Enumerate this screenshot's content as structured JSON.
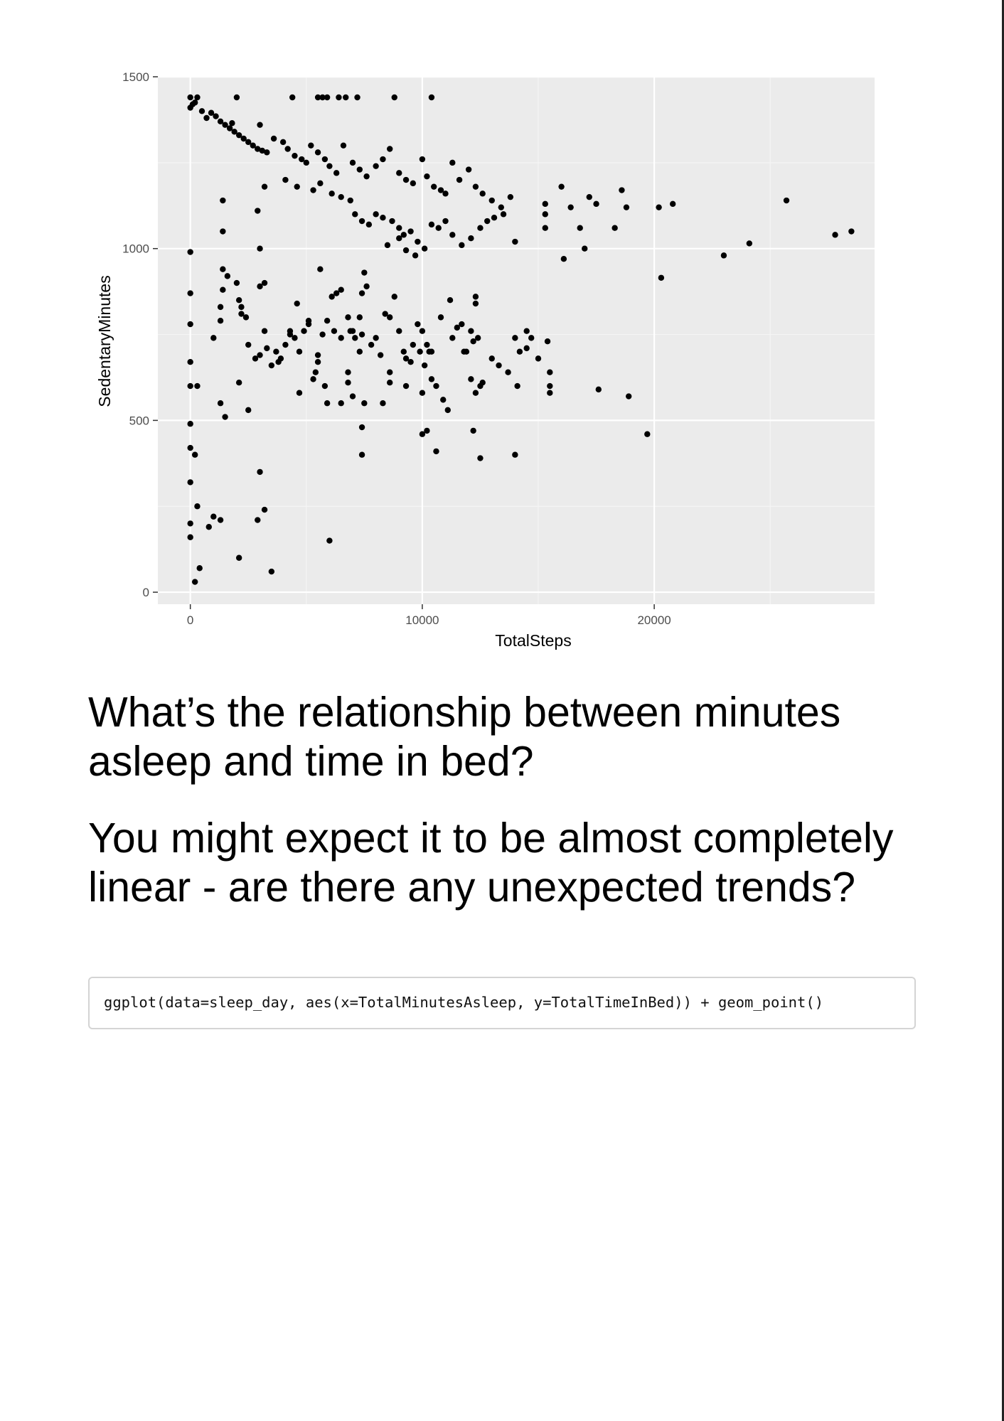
{
  "chart_data": {
    "type": "scatter",
    "xlabel": "TotalSteps",
    "ylabel": "SedentaryMinutes",
    "xlim": [
      -1400,
      29500
    ],
    "ylim": [
      -35,
      1500
    ],
    "xticks": [
      0,
      10000,
      20000
    ],
    "yticks": [
      0,
      500,
      1000,
      1500
    ],
    "grid": true,
    "points": [
      [
        0,
        1440
      ],
      [
        100,
        1420
      ],
      [
        300,
        1440
      ],
      [
        0,
        1410
      ],
      [
        200,
        1425
      ],
      [
        500,
        1400
      ],
      [
        700,
        1380
      ],
      [
        900,
        1395
      ],
      [
        1100,
        1385
      ],
      [
        1300,
        1370
      ],
      [
        1500,
        1360
      ],
      [
        1700,
        1350
      ],
      [
        1900,
        1340
      ],
      [
        2100,
        1330
      ],
      [
        2300,
        1320
      ],
      [
        2500,
        1310
      ],
      [
        2700,
        1300
      ],
      [
        2900,
        1290
      ],
      [
        3100,
        1285
      ],
      [
        3300,
        1280
      ],
      [
        1800,
        1365
      ],
      [
        2000,
        1440
      ],
      [
        3000,
        1360
      ],
      [
        3600,
        1320
      ],
      [
        4000,
        1310
      ],
      [
        4200,
        1290
      ],
      [
        4500,
        1270
      ],
      [
        4800,
        1260
      ],
      [
        5000,
        1250
      ],
      [
        5200,
        1300
      ],
      [
        5500,
        1280
      ],
      [
        5800,
        1260
      ],
      [
        6000,
        1240
      ],
      [
        6300,
        1220
      ],
      [
        6600,
        1300
      ],
      [
        7000,
        1250
      ],
      [
        7300,
        1230
      ],
      [
        7600,
        1210
      ],
      [
        8000,
        1240
      ],
      [
        8300,
        1260
      ],
      [
        8600,
        1290
      ],
      [
        9000,
        1220
      ],
      [
        9300,
        1200
      ],
      [
        9600,
        1190
      ],
      [
        10000,
        1260
      ],
      [
        10200,
        1210
      ],
      [
        10500,
        1180
      ],
      [
        10800,
        1170
      ],
      [
        11000,
        1160
      ],
      [
        11300,
        1250
      ],
      [
        11600,
        1200
      ],
      [
        12000,
        1230
      ],
      [
        12300,
        1180
      ],
      [
        12600,
        1160
      ],
      [
        13000,
        1140
      ],
      [
        13400,
        1120
      ],
      [
        13800,
        1150
      ],
      [
        4400,
        1440
      ],
      [
        5500,
        1440
      ],
      [
        5700,
        1440
      ],
      [
        5900,
        1440
      ],
      [
        6400,
        1440
      ],
      [
        6700,
        1440
      ],
      [
        7200,
        1440
      ],
      [
        8800,
        1440
      ],
      [
        10400,
        1440
      ],
      [
        3200,
        1180
      ],
      [
        4100,
        1200
      ],
      [
        4600,
        1180
      ],
      [
        5300,
        1170
      ],
      [
        5600,
        1190
      ],
      [
        6100,
        1160
      ],
      [
        6500,
        1150
      ],
      [
        6900,
        1140
      ],
      [
        7100,
        1100
      ],
      [
        7400,
        1080
      ],
      [
        7700,
        1070
      ],
      [
        8000,
        1100
      ],
      [
        8300,
        1090
      ],
      [
        8700,
        1080
      ],
      [
        9000,
        1060
      ],
      [
        9200,
        1040
      ],
      [
        9500,
        1050
      ],
      [
        9800,
        1020
      ],
      [
        10100,
        1000
      ],
      [
        10400,
        1070
      ],
      [
        10700,
        1060
      ],
      [
        11000,
        1080
      ],
      [
        11300,
        1040
      ],
      [
        11700,
        1010
      ],
      [
        12100,
        1030
      ],
      [
        12500,
        1060
      ],
      [
        12800,
        1080
      ],
      [
        13100,
        1090
      ],
      [
        13500,
        1100
      ],
      [
        14000,
        1020
      ],
      [
        15300,
        1060
      ],
      [
        15300,
        1100
      ],
      [
        15300,
        1130
      ],
      [
        16000,
        1180
      ],
      [
        16100,
        970
      ],
      [
        16400,
        1120
      ],
      [
        16800,
        1060
      ],
      [
        17000,
        1000
      ],
      [
        17200,
        1150
      ],
      [
        17500,
        1130
      ],
      [
        18300,
        1060
      ],
      [
        18600,
        1170
      ],
      [
        18800,
        1120
      ],
      [
        20200,
        1120
      ],
      [
        20800,
        1130
      ],
      [
        20300,
        915
      ],
      [
        23000,
        980
      ],
      [
        24100,
        1015
      ],
      [
        25700,
        1140
      ],
      [
        27800,
        1040
      ],
      [
        28500,
        1050
      ],
      [
        8500,
        1010
      ],
      [
        9300,
        995
      ],
      [
        9700,
        980
      ],
      [
        9000,
        1030
      ],
      [
        1400,
        1140
      ],
      [
        1400,
        1050
      ],
      [
        2900,
        1110
      ],
      [
        3000,
        1000
      ],
      [
        0,
        990
      ],
      [
        0,
        870
      ],
      [
        0,
        780
      ],
      [
        0,
        670
      ],
      [
        0,
        600
      ],
      [
        300,
        600
      ],
      [
        0,
        490
      ],
      [
        0,
        420
      ],
      [
        200,
        400
      ],
      [
        0,
        320
      ],
      [
        0,
        200
      ],
      [
        0,
        160
      ],
      [
        300,
        250
      ],
      [
        400,
        70
      ],
      [
        200,
        30
      ],
      [
        800,
        190
      ],
      [
        1000,
        220
      ],
      [
        1300,
        210
      ],
      [
        2100,
        100
      ],
      [
        2900,
        210
      ],
      [
        3200,
        240
      ],
      [
        3500,
        60
      ],
      [
        3000,
        350
      ],
      [
        6000,
        150
      ],
      [
        1000,
        740
      ],
      [
        1300,
        830
      ],
      [
        1300,
        790
      ],
      [
        1400,
        940
      ],
      [
        1600,
        920
      ],
      [
        1400,
        880
      ],
      [
        1300,
        550
      ],
      [
        1500,
        510
      ],
      [
        2000,
        900
      ],
      [
        2100,
        850
      ],
      [
        2200,
        810
      ],
      [
        2400,
        800
      ],
      [
        2200,
        830
      ],
      [
        2100,
        610
      ],
      [
        2500,
        530
      ],
      [
        2500,
        720
      ],
      [
        3000,
        890
      ],
      [
        3200,
        900
      ],
      [
        2800,
        680
      ],
      [
        3000,
        690
      ],
      [
        3200,
        760
      ],
      [
        3300,
        710
      ],
      [
        3500,
        660
      ],
      [
        3700,
        700
      ],
      [
        3900,
        680
      ],
      [
        4100,
        720
      ],
      [
        4300,
        750
      ],
      [
        4500,
        740
      ],
      [
        4700,
        700
      ],
      [
        4700,
        580
      ],
      [
        4900,
        760
      ],
      [
        5100,
        790
      ],
      [
        5300,
        620
      ],
      [
        5500,
        670
      ],
      [
        5700,
        750
      ],
      [
        5900,
        790
      ],
      [
        6100,
        860
      ],
      [
        6300,
        870
      ],
      [
        6500,
        880
      ],
      [
        5500,
        690
      ],
      [
        5800,
        600
      ],
      [
        5600,
        940
      ],
      [
        6200,
        760
      ],
      [
        6500,
        740
      ],
      [
        6800,
        800
      ],
      [
        7000,
        760
      ],
      [
        6800,
        640
      ],
      [
        6800,
        610
      ],
      [
        7000,
        570
      ],
      [
        7300,
        700
      ],
      [
        7400,
        870
      ],
      [
        7600,
        890
      ],
      [
        7400,
        750
      ],
      [
        7500,
        930
      ],
      [
        7800,
        720
      ],
      [
        8000,
        740
      ],
      [
        8200,
        690
      ],
      [
        7300,
        800
      ],
      [
        7500,
        550
      ],
      [
        7400,
        480
      ],
      [
        7400,
        400
      ],
      [
        8400,
        810
      ],
      [
        8600,
        800
      ],
      [
        8800,
        860
      ],
      [
        8600,
        640
      ],
      [
        8600,
        610
      ],
      [
        8300,
        550
      ],
      [
        9000,
        760
      ],
      [
        9200,
        700
      ],
      [
        9300,
        680
      ],
      [
        9500,
        670
      ],
      [
        9300,
        600
      ],
      [
        9600,
        720
      ],
      [
        9800,
        780
      ],
      [
        10000,
        760
      ],
      [
        10200,
        720
      ],
      [
        10300,
        700
      ],
      [
        10100,
        660
      ],
      [
        10400,
        620
      ],
      [
        10600,
        600
      ],
      [
        10000,
        580
      ],
      [
        10000,
        460
      ],
      [
        10200,
        470
      ],
      [
        10600,
        410
      ],
      [
        10900,
        560
      ],
      [
        11100,
        530
      ],
      [
        11300,
        740
      ],
      [
        11500,
        770
      ],
      [
        11700,
        780
      ],
      [
        11900,
        700
      ],
      [
        12100,
        760
      ],
      [
        12200,
        730
      ],
      [
        12300,
        860
      ],
      [
        12300,
        840
      ],
      [
        12400,
        740
      ],
      [
        12500,
        600
      ],
      [
        12300,
        580
      ],
      [
        12600,
        610
      ],
      [
        12200,
        470
      ],
      [
        12500,
        390
      ],
      [
        13000,
        680
      ],
      [
        13300,
        660
      ],
      [
        13700,
        640
      ],
      [
        14000,
        740
      ],
      [
        14200,
        700
      ],
      [
        14500,
        710
      ],
      [
        14500,
        760
      ],
      [
        14700,
        740
      ],
      [
        15000,
        680
      ],
      [
        15400,
        730
      ],
      [
        15500,
        640
      ],
      [
        15500,
        600
      ],
      [
        15500,
        580
      ],
      [
        14000,
        400
      ],
      [
        14100,
        600
      ],
      [
        17600,
        590
      ],
      [
        18900,
        570
      ],
      [
        19700,
        460
      ],
      [
        9900,
        700
      ],
      [
        10400,
        700
      ],
      [
        10800,
        800
      ],
      [
        11200,
        850
      ],
      [
        11800,
        700
      ],
      [
        12100,
        620
      ],
      [
        5400,
        640
      ],
      [
        6900,
        760
      ],
      [
        7100,
        740
      ],
      [
        3800,
        670
      ],
      [
        4300,
        760
      ],
      [
        4600,
        840
      ],
      [
        5100,
        780
      ],
      [
        5900,
        550
      ],
      [
        6500,
        550
      ]
    ]
  },
  "heading_1": "What’s the relationship between minutes asleep and time in bed?",
  "heading_2": "You might expect it to be almost completely linear - are there any unexpected trends?",
  "code": "ggplot(data=sleep_day, aes(x=TotalMinutesAsleep, y=TotalTimeInBed)) + geom_point()"
}
